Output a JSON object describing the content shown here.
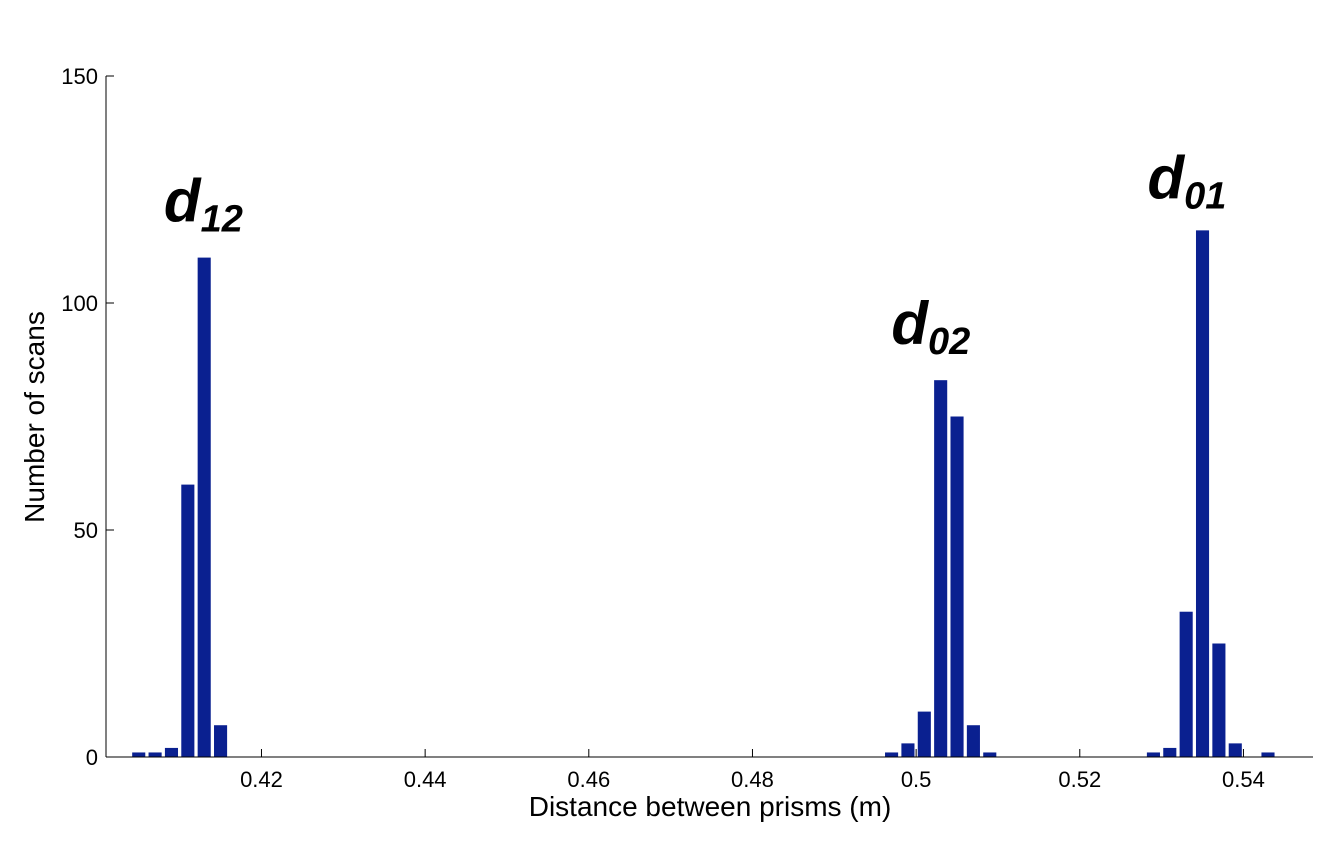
{
  "chart_data": {
    "type": "bar",
    "title": "",
    "xlabel": "Distance between prisms (m)",
    "ylabel": "Number of scans",
    "xlim": [
      0.401,
      0.5485
    ],
    "ylim": [
      0,
      150
    ],
    "xticks": [
      0.42,
      0.44,
      0.46,
      0.48,
      0.5,
      0.52,
      0.54
    ],
    "xtick_labels": [
      "0.42",
      "0.44",
      "0.46",
      "0.48",
      "0.5",
      "0.52",
      "0.54"
    ],
    "yticks": [
      0,
      50,
      100,
      150
    ],
    "ytick_labels": [
      "0",
      "50",
      "100",
      "150"
    ],
    "bin_width": 0.002,
    "bar_color": "#0a2090",
    "grid": false,
    "legend": "none",
    "series": [
      {
        "x": [
          0.405,
          0.407,
          0.409,
          0.411,
          0.413,
          0.415,
          0.497,
          0.499,
          0.501,
          0.503,
          0.505,
          0.507,
          0.509,
          0.529,
          0.531,
          0.533,
          0.535,
          0.537,
          0.539,
          0.543
        ],
        "values": [
          1,
          1,
          2,
          60,
          110,
          7,
          1,
          3,
          10,
          83,
          75,
          7,
          1,
          1,
          2,
          32,
          116,
          25,
          3,
          1
        ]
      }
    ],
    "annotations": [
      {
        "main": "d",
        "sub": "12",
        "x": 0.4129,
        "y": 118
      },
      {
        "main": "d",
        "sub": "02",
        "x": 0.5018,
        "y": 91
      },
      {
        "main": "d",
        "sub": "01",
        "x": 0.5331,
        "y": 123
      }
    ]
  }
}
